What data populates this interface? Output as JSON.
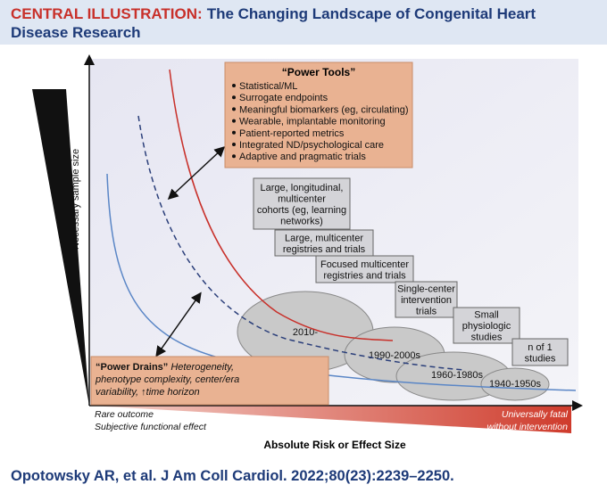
{
  "header": {
    "label": "CENTRAL ILLUSTRATION:",
    "title_lines": [
      "The Changing Landscape of Congenital Heart",
      "Disease Research"
    ]
  },
  "axes": {
    "y_label": "Necessary sample size",
    "x_label": "Absolute Risk or Effect Size"
  },
  "scale": {
    "left_lines": [
      "Rare outcome",
      "Subjective functional effect"
    ],
    "right_lines": [
      "Universally fatal",
      "without intervention"
    ]
  },
  "power_tools": {
    "title": "“Power Tools”",
    "items": [
      "Statistical/ML",
      "Surrogate endpoints",
      "Meaningful biomarkers (eg, circulating)",
      "Wearable, implantable monitoring",
      "Patient-reported metrics",
      "Integrated ND/psychological care",
      "Adaptive and pragmatic trials"
    ]
  },
  "power_drains": {
    "title": "“Power Drains”",
    "lines": [
      "Heterogeneity,",
      "phenotype complexity, center/era",
      "variability, ↑time horizon"
    ]
  },
  "study_boxes": [
    {
      "lines": [
        "Large, longitudinal,",
        "multicenter",
        "cohorts (eg, learning",
        "networks)"
      ]
    },
    {
      "lines": [
        "Large, multicenter",
        "registries and trials"
      ]
    },
    {
      "lines": [
        "Focused multicenter",
        "registries and trials"
      ]
    },
    {
      "lines": [
        "Single-center",
        "intervention",
        "trials"
      ]
    },
    {
      "lines": [
        "Small",
        "physiologic",
        "studies"
      ]
    },
    {
      "lines": [
        "n of 1",
        "studies"
      ]
    }
  ],
  "eras": [
    "2010-",
    "1990-2000s",
    "1960-1980s",
    "1940-1950s"
  ],
  "citation": "Opotowsky AR, et al. J Am Coll Cardiol. 2022;80(23):2239–2250."
}
